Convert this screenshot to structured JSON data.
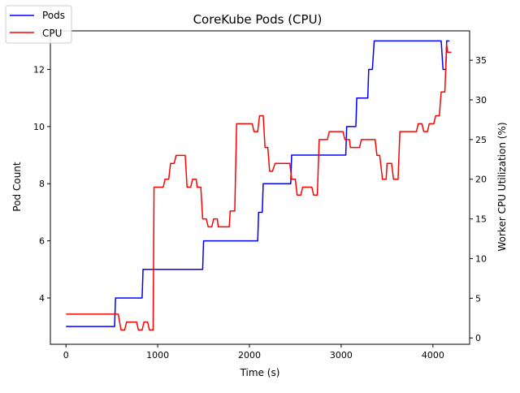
{
  "chart_data": {
    "type": "line",
    "title": "CoreKube Pods (CPU)",
    "xlabel": "Time (s)",
    "ylabel_left": "Pod Count",
    "ylabel_right": "Worker CPU Utilization (%)",
    "xlim": [
      -170,
      4400
    ],
    "ylim_left": [
      2.38,
      13.35
    ],
    "ylim_right": [
      -0.8,
      38.7
    ],
    "x_ticks": [
      0,
      1000,
      2000,
      3000,
      4000
    ],
    "y_ticks_left": [
      4,
      6,
      8,
      10,
      12
    ],
    "y_ticks_right": [
      0,
      5,
      10,
      15,
      20,
      25,
      30,
      35
    ],
    "legend": {
      "placement": "top-left"
    },
    "series": [
      {
        "name": "Pods",
        "axis": "left",
        "color": "#0000ff",
        "points": [
          [
            0,
            3
          ],
          [
            530,
            3
          ],
          [
            540,
            4
          ],
          [
            830,
            4
          ],
          [
            840,
            5
          ],
          [
            1490,
            5
          ],
          [
            1500,
            6
          ],
          [
            2090,
            6
          ],
          [
            2100,
            7
          ],
          [
            2140,
            7
          ],
          [
            2150,
            8
          ],
          [
            2450,
            8
          ],
          [
            2460,
            9
          ],
          [
            3050,
            9
          ],
          [
            3060,
            10
          ],
          [
            3160,
            10
          ],
          [
            3170,
            11
          ],
          [
            3290,
            11
          ],
          [
            3300,
            12
          ],
          [
            3340,
            12
          ],
          [
            3360,
            13
          ],
          [
            4090,
            13
          ],
          [
            4110,
            12
          ],
          [
            4140,
            12
          ],
          [
            4150,
            13
          ],
          [
            4180,
            13
          ]
        ]
      },
      {
        "name": "CPU",
        "axis": "right",
        "color": "#ff0000",
        "points": [
          [
            0,
            3
          ],
          [
            570,
            3
          ],
          [
            600,
            1
          ],
          [
            640,
            1
          ],
          [
            660,
            2
          ],
          [
            770,
            2
          ],
          [
            790,
            1
          ],
          [
            830,
            1
          ],
          [
            850,
            2
          ],
          [
            890,
            2
          ],
          [
            910,
            1
          ],
          [
            950,
            1
          ],
          [
            960,
            19
          ],
          [
            1060,
            19
          ],
          [
            1080,
            20
          ],
          [
            1120,
            20
          ],
          [
            1140,
            22
          ],
          [
            1180,
            22
          ],
          [
            1200,
            23
          ],
          [
            1300,
            23
          ],
          [
            1320,
            19
          ],
          [
            1360,
            19
          ],
          [
            1380,
            20
          ],
          [
            1420,
            20
          ],
          [
            1430,
            19
          ],
          [
            1470,
            19
          ],
          [
            1490,
            15
          ],
          [
            1530,
            15
          ],
          [
            1550,
            14
          ],
          [
            1590,
            14
          ],
          [
            1610,
            15
          ],
          [
            1650,
            15
          ],
          [
            1660,
            14
          ],
          [
            1780,
            14
          ],
          [
            1790,
            16
          ],
          [
            1840,
            16
          ],
          [
            1860,
            27
          ],
          [
            2030,
            27
          ],
          [
            2050,
            26
          ],
          [
            2090,
            26
          ],
          [
            2110,
            28
          ],
          [
            2150,
            28
          ],
          [
            2170,
            24
          ],
          [
            2200,
            24
          ],
          [
            2220,
            21
          ],
          [
            2250,
            21
          ],
          [
            2280,
            22
          ],
          [
            2440,
            22
          ],
          [
            2460,
            20
          ],
          [
            2500,
            20
          ],
          [
            2520,
            18
          ],
          [
            2560,
            18
          ],
          [
            2580,
            19
          ],
          [
            2680,
            19
          ],
          [
            2700,
            18
          ],
          [
            2740,
            18
          ],
          [
            2760,
            25
          ],
          [
            2850,
            25
          ],
          [
            2870,
            26
          ],
          [
            3020,
            26
          ],
          [
            3040,
            25
          ],
          [
            3090,
            25
          ],
          [
            3100,
            24
          ],
          [
            3200,
            24
          ],
          [
            3220,
            25
          ],
          [
            3370,
            25
          ],
          [
            3390,
            23
          ],
          [
            3420,
            23
          ],
          [
            3450,
            20
          ],
          [
            3490,
            20
          ],
          [
            3500,
            22
          ],
          [
            3550,
            22
          ],
          [
            3570,
            20
          ],
          [
            3620,
            20
          ],
          [
            3640,
            26
          ],
          [
            3820,
            26
          ],
          [
            3840,
            27
          ],
          [
            3880,
            27
          ],
          [
            3900,
            26
          ],
          [
            3940,
            26
          ],
          [
            3960,
            27
          ],
          [
            4010,
            27
          ],
          [
            4030,
            28
          ],
          [
            4070,
            28
          ],
          [
            4090,
            31
          ],
          [
            4130,
            31
          ],
          [
            4150,
            37
          ],
          [
            4160,
            36
          ],
          [
            4200,
            36
          ]
        ]
      }
    ]
  }
}
